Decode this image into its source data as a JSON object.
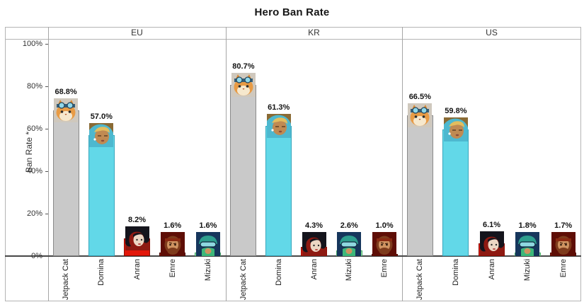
{
  "title": "Hero Ban Rate",
  "chart_data": {
    "type": "bar",
    "title": "Hero Ban Rate",
    "xlabel": "",
    "ylabel": "Ban Rate *",
    "ylim": [
      0,
      100
    ],
    "grid": false,
    "legend": "none",
    "facet_layout": "three column panels by region",
    "y_ticks": [
      {
        "value": 0,
        "label": "0%"
      },
      {
        "value": 20,
        "label": "20%"
      },
      {
        "value": 40,
        "label": "40%"
      },
      {
        "value": 60,
        "label": "60%"
      },
      {
        "value": 80,
        "label": "80%"
      },
      {
        "value": 100,
        "label": "100%"
      }
    ],
    "panels": [
      {
        "region": "EU",
        "bars": [
          {
            "hero": "Jetpack Cat",
            "value": 68.8,
            "label": "68.8%"
          },
          {
            "hero": "Domina",
            "value": 57.0,
            "label": "57.0%"
          },
          {
            "hero": "Anran",
            "value": 8.2,
            "label": "8.2%"
          },
          {
            "hero": "Emre",
            "value": 1.6,
            "label": "1.6%"
          },
          {
            "hero": "Mizuki",
            "value": 1.6,
            "label": "1.6%"
          }
        ]
      },
      {
        "region": "KR",
        "bars": [
          {
            "hero": "Jetpack Cat",
            "value": 80.7,
            "label": "80.7%"
          },
          {
            "hero": "Domina",
            "value": 61.3,
            "label": "61.3%"
          },
          {
            "hero": "Anran",
            "value": 4.3,
            "label": "4.3%"
          },
          {
            "hero": "Mizuki",
            "value": 2.6,
            "label": "2.6%"
          },
          {
            "hero": "Emre",
            "value": 1.0,
            "label": "1.0%"
          }
        ]
      },
      {
        "region": "US",
        "bars": [
          {
            "hero": "Jetpack Cat",
            "value": 66.5,
            "label": "66.5%"
          },
          {
            "hero": "Domina",
            "value": 59.8,
            "label": "59.8%"
          },
          {
            "hero": "Anran",
            "value": 6.1,
            "label": "6.1%"
          },
          {
            "hero": "Mizuki",
            "value": 1.8,
            "label": "1.8%"
          },
          {
            "hero": "Emre",
            "value": 1.7,
            "label": "1.7%"
          }
        ]
      }
    ],
    "hero_colors": {
      "Jetpack Cat": {
        "fill": "#c9c9c9",
        "border": "#8a8a8a"
      },
      "Domina": {
        "fill": "#62d8e8",
        "border": "#38a7bd"
      },
      "Anran": {
        "fill": "#e3170a",
        "border": "#8e0e04"
      },
      "Emre": {
        "fill": "#8c1a0b",
        "border": "#4f0c03"
      },
      "Mizuki": {
        "fill": "#92e8a8",
        "border": "#4aa968"
      }
    }
  }
}
